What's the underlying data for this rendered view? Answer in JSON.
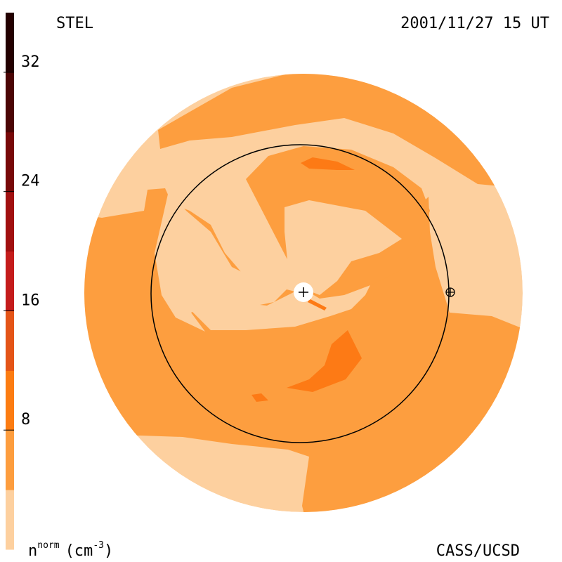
{
  "header": {
    "left": "STEL",
    "right": "2001/11/27 15 UT"
  },
  "footer": "CASS/UCSD",
  "colorbar": {
    "label": [
      "n",
      "norm",
      "(cm",
      "-3",
      ")"
    ],
    "lim": [
      0,
      36
    ],
    "ticks": [
      8,
      16,
      24,
      32
    ],
    "colors": [
      "#fdd09f",
      "#fd9d3e",
      "#fc7c12",
      "#e45417",
      "#c41c1b",
      "#a11010",
      "#770808",
      "#4b0505",
      "#230000"
    ]
  }
}
